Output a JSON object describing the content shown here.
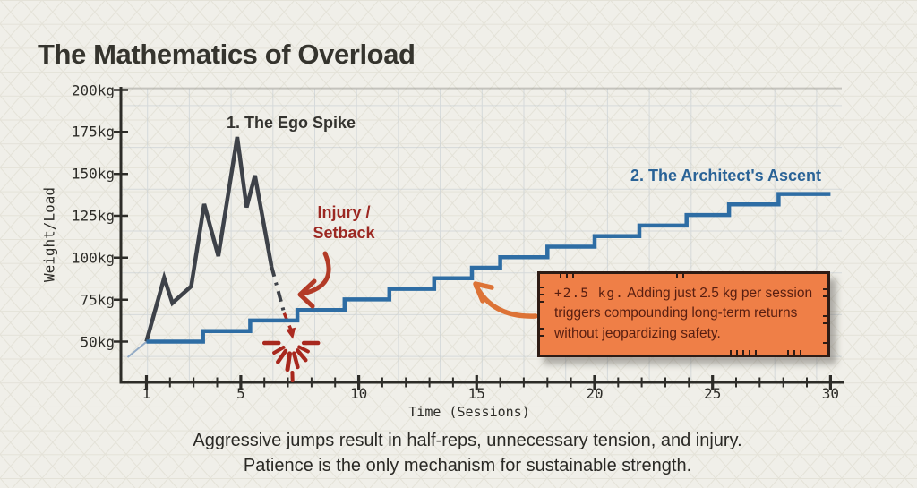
{
  "title": "The Mathematics of Overload",
  "footer": {
    "line1": "Aggressive jumps result in half-reps, unnecessary tension, and injury.",
    "line2": "Patience is the only mechanism for sustainable strength."
  },
  "chart_data": {
    "type": "line",
    "title": "The Mathematics of Overload",
    "xlabel": "Time (Sessions)",
    "ylabel": "Weight/Load",
    "xlim": [
      1,
      30
    ],
    "ylim": [
      26,
      200
    ],
    "x_ticks": [
      1,
      5,
      10,
      15,
      20,
      25,
      30
    ],
    "x_minor_tick_every": 1,
    "y_ticks": [
      {
        "value": 200,
        "label": "200kg"
      },
      {
        "value": 175,
        "label": "175kg"
      },
      {
        "value": 150,
        "label": "150kg"
      },
      {
        "value": 125,
        "label": "125kg"
      },
      {
        "value": 100,
        "label": "100kg"
      },
      {
        "value": 75,
        "label": "75kg"
      },
      {
        "value": 50,
        "label": "50kg"
      }
    ],
    "grid": true,
    "series": [
      {
        "name": "1. The Ego Spike",
        "type": "jagged-line",
        "color": "#3e4249",
        "points": [
          [
            1,
            50
          ],
          [
            1.75,
            88
          ],
          [
            2.1,
            73
          ],
          [
            2.9,
            83
          ],
          [
            3.45,
            132
          ],
          [
            4.05,
            101
          ],
          [
            4.85,
            172
          ],
          [
            5.25,
            130
          ],
          [
            5.6,
            149
          ],
          [
            6.3,
            95
          ]
        ],
        "dashed_tail": [
          [
            6.3,
            95
          ],
          [
            6.84,
            67
          ]
        ],
        "outcome": "injury"
      },
      {
        "name": "2. The Architect's Ascent",
        "type": "step-line",
        "color": "#2e6da4",
        "start": [
          1,
          50
        ],
        "end": [
          30,
          138
        ],
        "kg_per_step": 6.29,
        "step_sessions": [
          3.4,
          5.4,
          7.4,
          9.4,
          11.3,
          13.2,
          14.8,
          16.0,
          18.0,
          20.0,
          21.9,
          23.9,
          25.7,
          27.8
        ]
      }
    ],
    "annotations": {
      "injury_label": {
        "line1": "Injury /",
        "line2": "Setback"
      },
      "crash_dash": [
        [
          6.84,
          67
        ],
        [
          7.13,
          57
        ]
      ],
      "crash_tip": [
        7.21,
        51.5
      ],
      "burst_center": [
        7.14,
        49.2
      ],
      "callout": {
        "prefix": "+2.5 kg.",
        "rest": "Adding just 2.5 kg per session triggers compounding long-term returns without jeopardizing safety."
      }
    }
  },
  "colors": {
    "background": "#f0efe9",
    "pattern_line": "#e2e0d5",
    "grid_line": "#bcc6ce",
    "plot_top_line": "#8f8e88",
    "axis": "#2d2c28",
    "tick_label": "#2d2c28",
    "title_text": "#35342e",
    "footer_text": "#2a2925",
    "ego_line": "#3e4249",
    "ego_label": "#34332f",
    "architect_line": "#2e6da4",
    "architect_tail": "#93abc6",
    "architect_label": "#2a6397",
    "injury_text": "#9c2822",
    "injury_arrow": "#b33b27",
    "crash_red": "#ab2a20",
    "burst": "#a8281e",
    "callout_arrow": "#dd7336",
    "callout_bg": "#ef7f47",
    "callout_border": "#2e1c15",
    "callout_text": "#581e10"
  }
}
